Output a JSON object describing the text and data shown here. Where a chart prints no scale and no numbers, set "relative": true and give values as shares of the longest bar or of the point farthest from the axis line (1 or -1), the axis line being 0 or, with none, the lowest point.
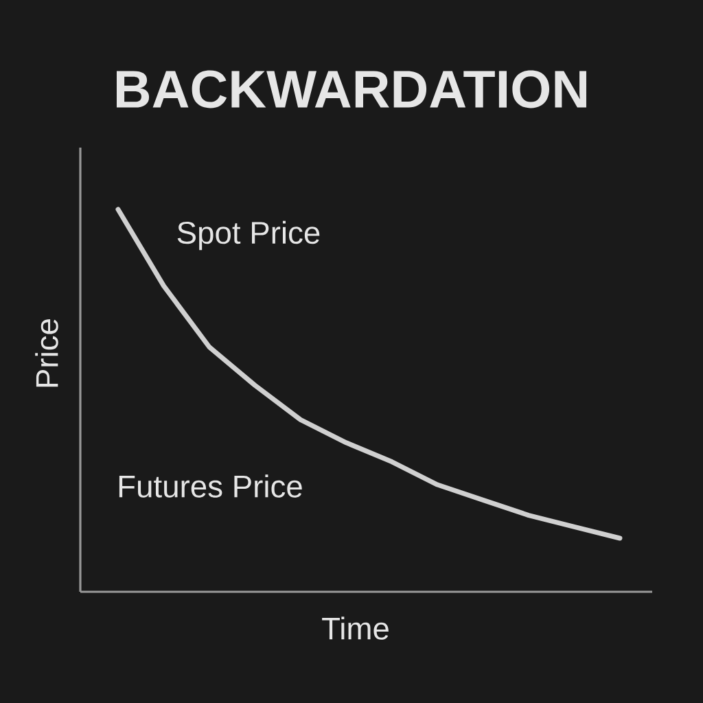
{
  "chart_data": {
    "type": "line",
    "title": "BACKWARDATION",
    "xlabel": "Time",
    "ylabel": "Price",
    "annotations": [
      "Spot Price",
      "Futures Price"
    ],
    "categories": [
      null,
      null,
      null,
      null,
      null,
      null,
      null,
      null,
      null,
      null,
      null,
      null
    ],
    "values": [
      1,
      0.8,
      0.64,
      0.54,
      0.45,
      0.39,
      0.34,
      0.28,
      0.24,
      0.2,
      0.17,
      0.14
    ],
    "color": "#d0d0d0",
    "relative": true,
    "line_style": "solid"
  }
}
